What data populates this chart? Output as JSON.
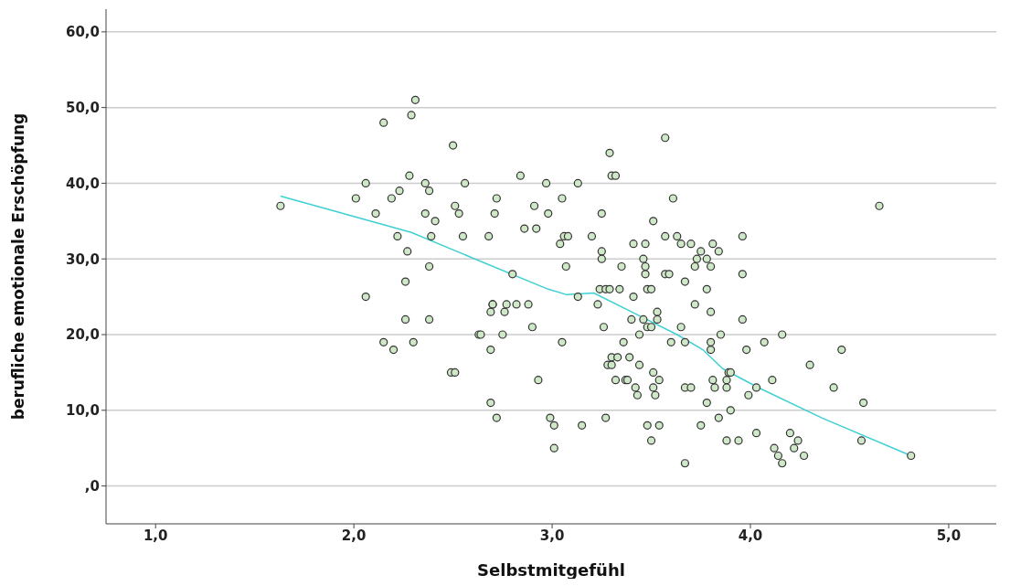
{
  "chart_data": {
    "type": "scatter",
    "xlabel": "Selbstmitgefühl",
    "ylabel": "berufliche emotionale Erschöpfung",
    "xlim": [
      0.75,
      5.24
    ],
    "ylim": [
      -5,
      63
    ],
    "xticks": [
      {
        "value": 1,
        "label": "1,0"
      },
      {
        "value": 2,
        "label": "2,0"
      },
      {
        "value": 3,
        "label": "3,0"
      },
      {
        "value": 4,
        "label": "4,0"
      },
      {
        "value": 5,
        "label": "5,0"
      }
    ],
    "yticks": [
      {
        "value": 0,
        "label": ",0"
      },
      {
        "value": 10,
        "label": "10,0"
      },
      {
        "value": 20,
        "label": "20,0"
      },
      {
        "value": 30,
        "label": "30,0"
      },
      {
        "value": 40,
        "label": "40,0"
      },
      {
        "value": 50,
        "label": "50,0"
      },
      {
        "value": 60,
        "label": "60,0"
      }
    ],
    "grid": "y",
    "marker": "circle",
    "series": [
      {
        "color": "#cfe8c8",
        "x": [
          1.63,
          2.01,
          2.06,
          2.06,
          2.11,
          2.15,
          2.15,
          2.19,
          2.2,
          2.22,
          2.23,
          2.26,
          2.26,
          2.27,
          2.28,
          2.29,
          2.3,
          2.31,
          2.36,
          2.36,
          2.38,
          2.38,
          2.38,
          2.39,
          2.41,
          2.49,
          2.5,
          2.51,
          2.51,
          2.53,
          2.55,
          2.56,
          2.63,
          2.64,
          2.68,
          2.69,
          2.69,
          2.7,
          2.7,
          2.69,
          2.71,
          2.72,
          2.72,
          2.75,
          2.76,
          2.77,
          2.8,
          2.82,
          2.84,
          2.86,
          2.88,
          2.9,
          2.91,
          2.92,
          2.93,
          2.97,
          2.98,
          2.99,
          3.01,
          3.01,
          3.04,
          3.05,
          3.05,
          3.06,
          3.07,
          3.08,
          3.13,
          3.13,
          3.15,
          3.2,
          3.23,
          3.24,
          3.25,
          3.25,
          3.25,
          3.26,
          3.27,
          3.27,
          3.28,
          3.29,
          3.29,
          3.3,
          3.3,
          3.3,
          3.32,
          3.32,
          3.33,
          3.34,
          3.35,
          3.36,
          3.37,
          3.38,
          3.39,
          3.4,
          3.41,
          3.41,
          3.42,
          3.43,
          3.44,
          3.44,
          3.46,
          3.46,
          3.47,
          3.47,
          3.47,
          3.48,
          3.48,
          3.48,
          3.5,
          3.5,
          3.5,
          3.51,
          3.51,
          3.51,
          3.52,
          3.53,
          3.53,
          3.54,
          3.54,
          3.57,
          3.57,
          3.57,
          3.59,
          3.6,
          3.61,
          3.63,
          3.65,
          3.65,
          3.67,
          3.67,
          3.67,
          3.67,
          3.7,
          3.7,
          3.72,
          3.72,
          3.73,
          3.75,
          3.75,
          3.78,
          3.78,
          3.78,
          3.8,
          3.8,
          3.8,
          3.8,
          3.81,
          3.81,
          3.82,
          3.84,
          3.84,
          3.85,
          3.88,
          3.88,
          3.88,
          3.89,
          3.9,
          3.9,
          3.94,
          3.96,
          3.96,
          3.96,
          3.98,
          3.99,
          4.03,
          4.03,
          4.07,
          4.11,
          4.12,
          4.14,
          4.16,
          4.16,
          4.2,
          4.22,
          4.24,
          4.27,
          4.3,
          4.42,
          4.46,
          4.57,
          4.56,
          4.65,
          4.81
        ],
        "values": [
          37,
          38,
          40,
          25,
          36,
          48,
          19,
          38,
          18,
          33,
          39,
          22,
          27,
          31,
          41,
          49,
          19,
          51,
          40,
          36,
          39,
          29,
          22,
          33,
          35,
          15,
          45,
          15,
          37,
          36,
          33,
          40,
          20,
          20,
          33,
          18,
          23,
          24,
          24,
          11,
          36,
          38,
          9,
          20,
          23,
          24,
          28,
          24,
          41,
          34,
          24,
          21,
          37,
          34,
          14,
          40,
          36,
          9,
          8,
          5,
          32,
          38,
          19,
          33,
          29,
          33,
          40,
          25,
          8,
          33,
          24,
          26,
          36,
          31,
          30,
          21,
          9,
          26,
          16,
          44,
          26,
          17,
          16,
          41,
          14,
          41,
          17,
          26,
          29,
          19,
          14,
          14,
          17,
          22,
          32,
          25,
          13,
          12,
          20,
          16,
          30,
          22,
          32,
          29,
          28,
          26,
          21,
          8,
          26,
          21,
          6,
          15,
          35,
          13,
          12,
          23,
          22,
          8,
          14,
          46,
          33,
          28,
          28,
          19,
          38,
          33,
          32,
          21,
          27,
          19,
          13,
          3,
          32,
          13,
          29,
          24,
          30,
          31,
          8,
          11,
          30,
          26,
          23,
          29,
          19,
          18,
          32,
          14,
          13,
          9,
          31,
          20,
          6,
          14,
          13,
          15,
          10,
          15,
          6,
          22,
          33,
          28,
          18,
          12,
          7,
          13,
          19,
          14,
          5,
          4,
          3,
          20,
          7,
          5,
          6,
          4,
          16,
          13,
          18,
          11,
          6,
          37,
          4
        ]
      },
      {
        "type": "line",
        "color": "#3fd0d4",
        "marker": "none",
        "x": [
          1.63,
          2.29,
          2.61,
          2.98,
          3.07,
          3.21,
          3.44,
          3.63,
          3.76,
          3.86,
          4.04,
          4.36,
          4.81
        ],
        "values": [
          38.3,
          33.5,
          30,
          26,
          25.3,
          25.5,
          22.5,
          20,
          18,
          15.5,
          13,
          9,
          4
        ]
      }
    ]
  }
}
